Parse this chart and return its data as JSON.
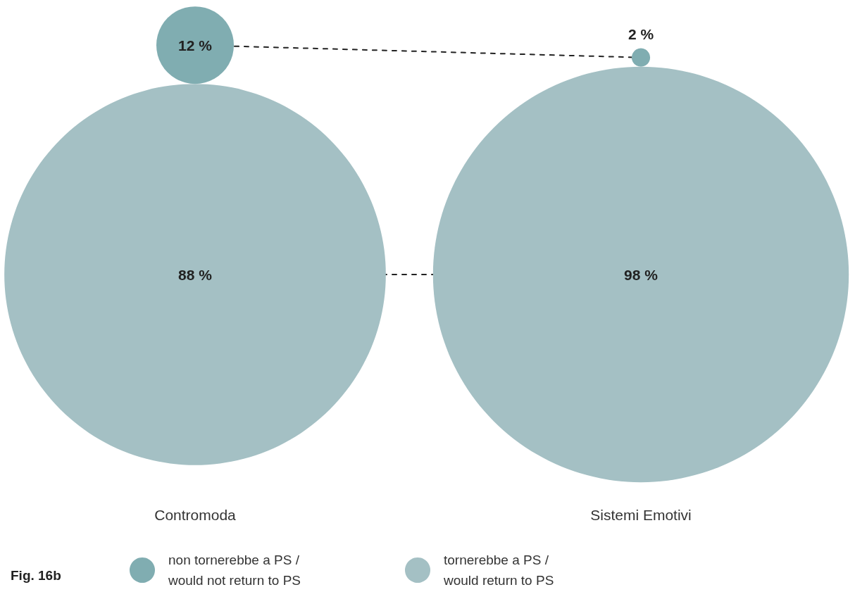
{
  "chart_data": {
    "type": "other",
    "categories": [
      "Contromoda",
      "Sistemi Emotivi"
    ],
    "series": [
      {
        "name": "non tornerebbe a PS /\nwould not return to PS",
        "color": "#80adb1",
        "values": [
          12,
          2
        ],
        "value_labels": [
          "12 %",
          "2 %"
        ]
      },
      {
        "name": "tornerebbe a PS /\nwould return to PS",
        "color": "#a4c0c4",
        "values": [
          88,
          98
        ],
        "value_labels": [
          "88 %",
          "98 %"
        ]
      }
    ],
    "legend": "bottom",
    "annotations": [
      "Fig. 16b"
    ]
  }
}
